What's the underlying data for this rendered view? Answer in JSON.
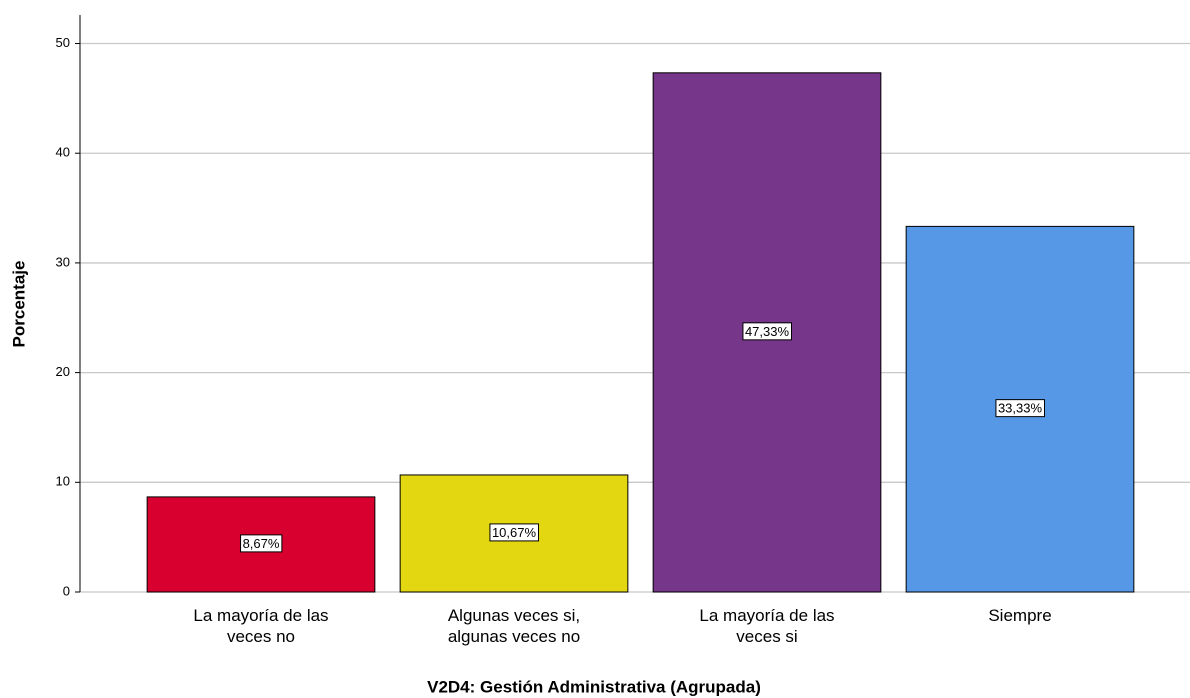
{
  "chart_data": {
    "type": "bar",
    "xlabel": "V2D4: Gestión Administrativa (Agrupada)",
    "ylabel": "Porcentaje",
    "categories": [
      "La mayoría de las\nveces no",
      "Algunas veces si,\nalgunas veces no",
      "La mayoría de las\nveces si",
      "Siempre"
    ],
    "values": [
      8.67,
      10.67,
      47.33,
      33.33
    ],
    "value_labels": [
      "8,67%",
      "10,67%",
      "47,33%",
      "33,33%"
    ],
    "colors": [
      "#d7002e",
      "#e3d711",
      "#76368a",
      "#5698e6"
    ],
    "ylim": [
      0,
      52.6
    ],
    "yticks": [
      0,
      10,
      20,
      30,
      40,
      50
    ],
    "grid": true
  }
}
